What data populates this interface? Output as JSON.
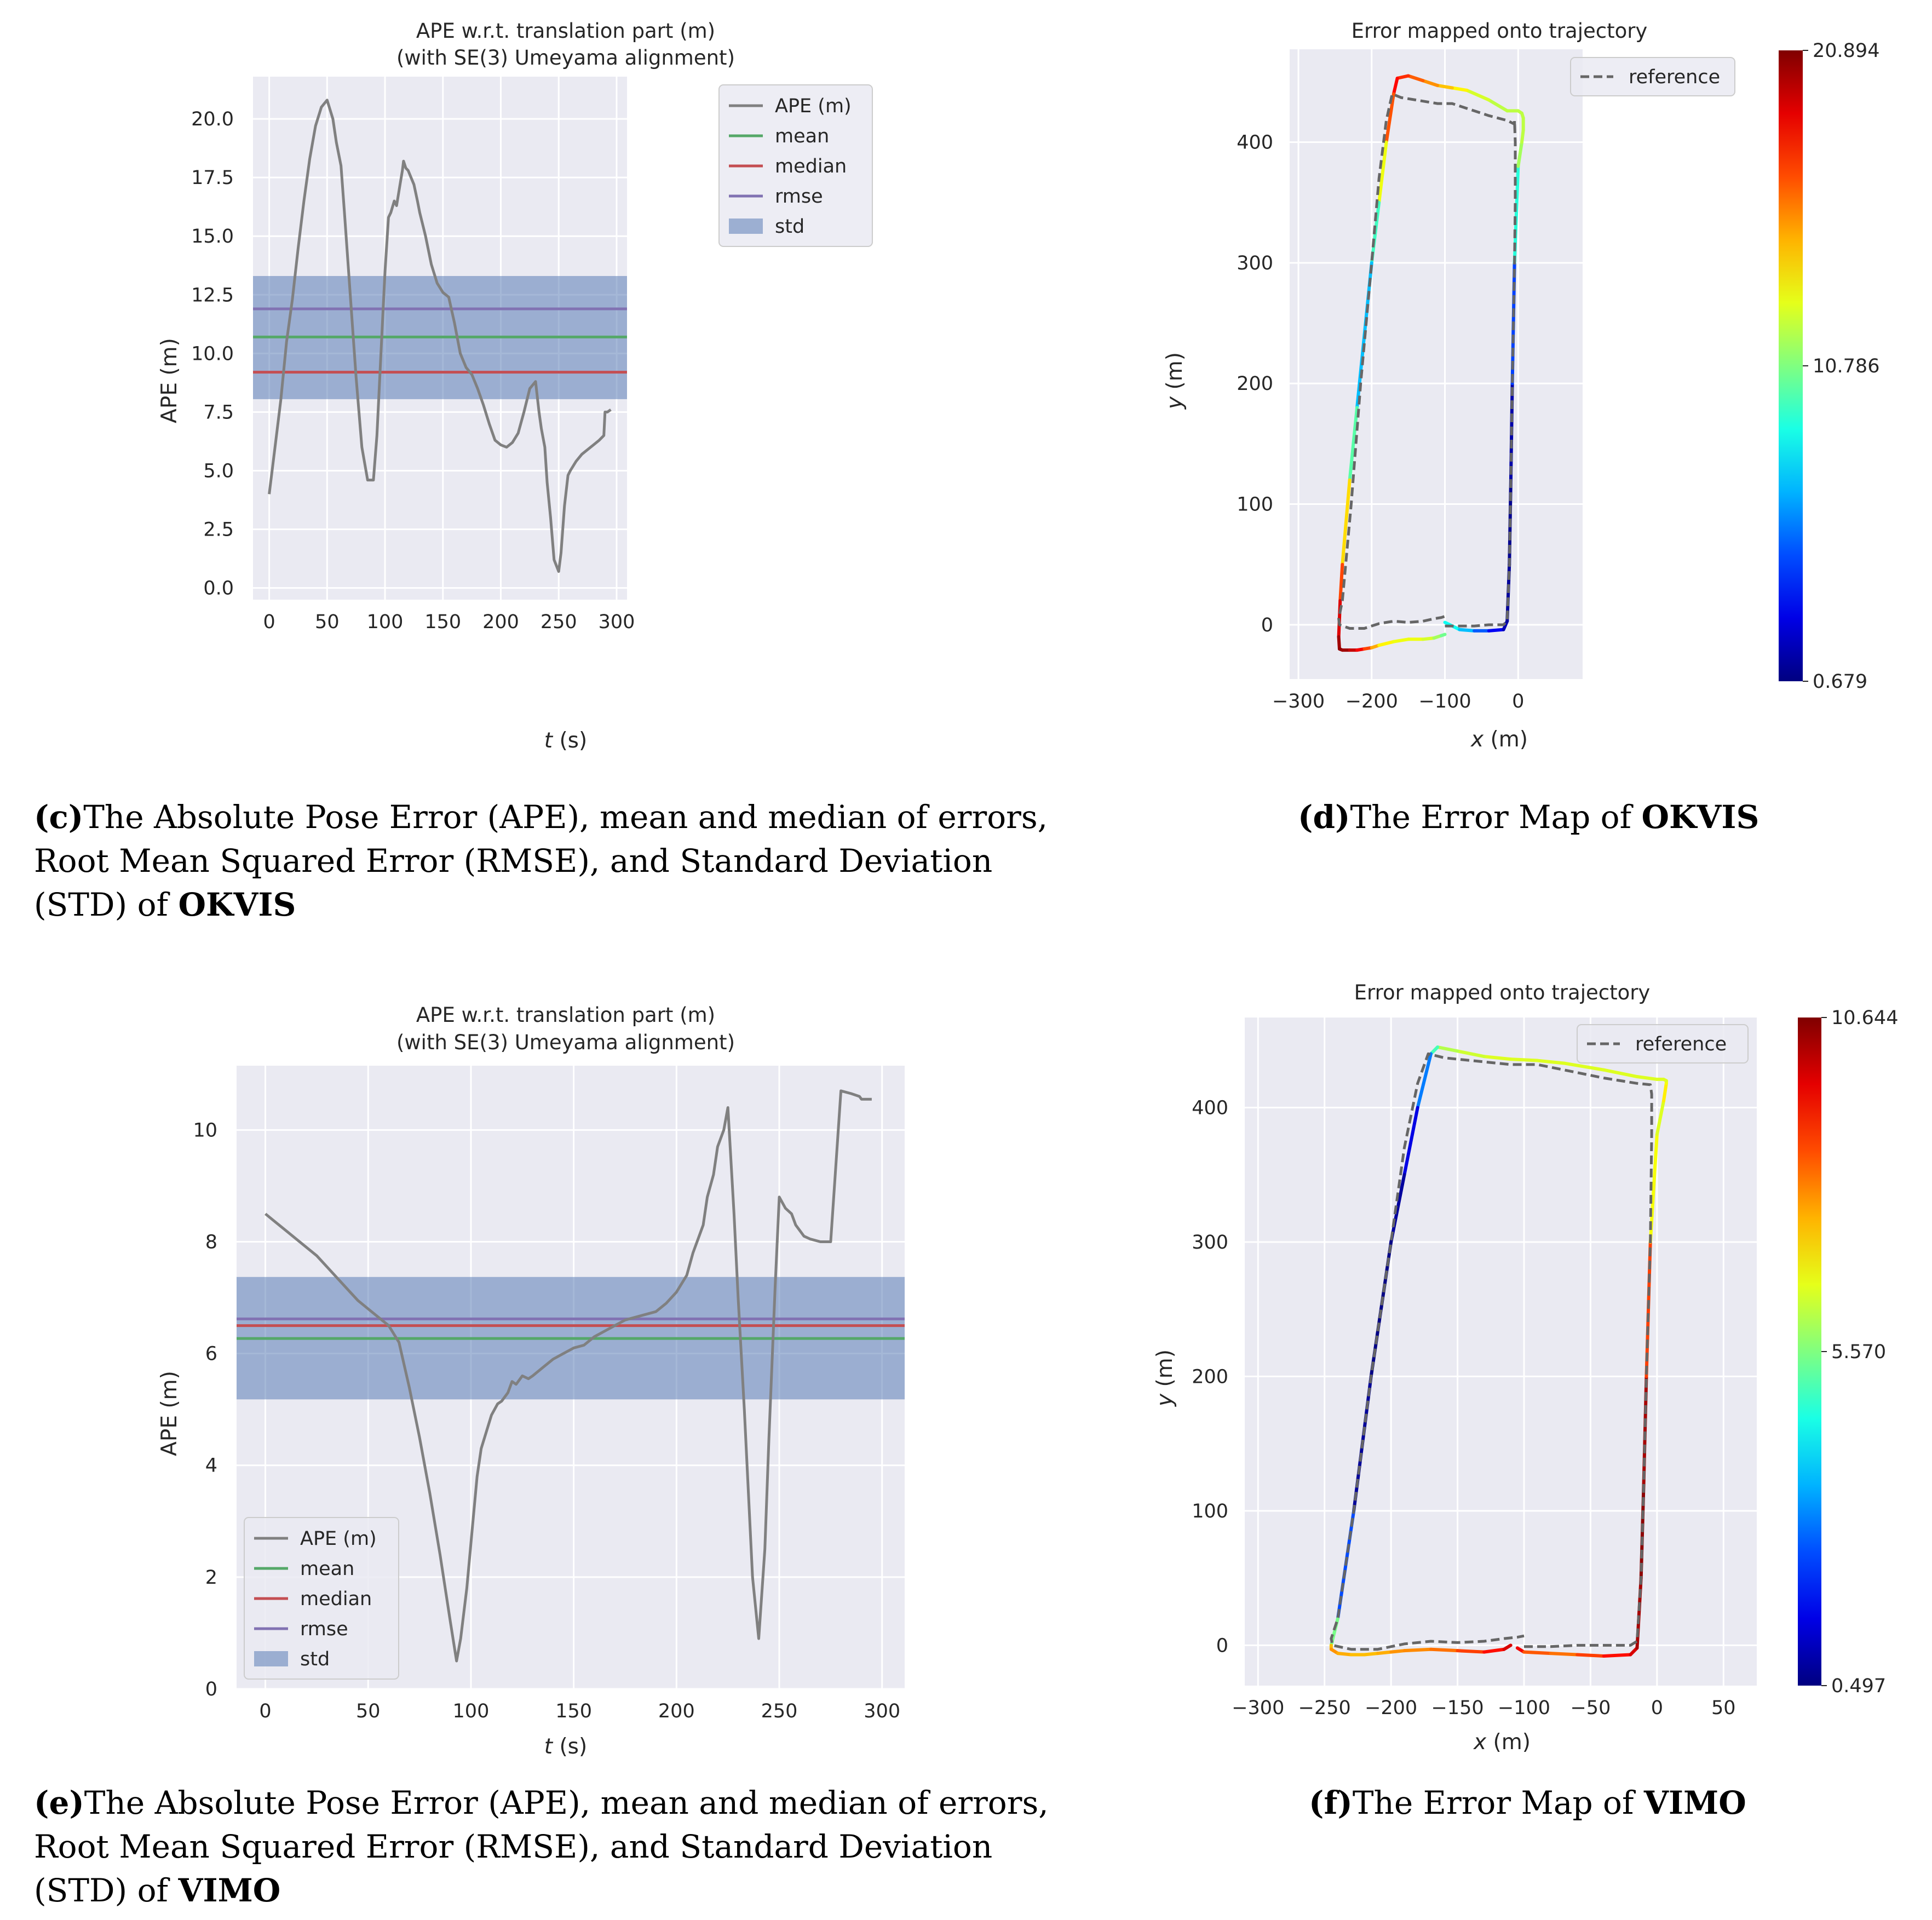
{
  "chart_data": [
    {
      "id": "c",
      "type": "line",
      "title": "APE w.r.t. translation part (m)",
      "subtitle": "(with SE(3) Umeyama alignment)",
      "xlabel_var": "t",
      "xlabel_unit": " (s)",
      "ylabel": "APE (m)",
      "xlim": [
        -14,
        309
      ],
      "ylim": [
        -0.5,
        21.8
      ],
      "xticks": [
        0,
        50,
        100,
        150,
        200,
        250,
        300
      ],
      "yticks": [
        0.0,
        2.5,
        5.0,
        7.5,
        10.0,
        12.5,
        15.0,
        17.5,
        20.0
      ],
      "ytick_labels": [
        "0.0",
        "2.5",
        "5.0",
        "7.5",
        "10.0",
        "12.5",
        "15.0",
        "17.5",
        "20.0"
      ],
      "legend_position": "top-right",
      "legend": [
        "APE (m)",
        "mean",
        "median",
        "rmse",
        "std"
      ],
      "stats": {
        "mean": 10.7,
        "median": 9.2,
        "rmse": 11.9,
        "std_low": 8.05,
        "std_high": 13.3
      },
      "series": [
        {
          "name": "APE (m)",
          "x": [
            0,
            5,
            10,
            15,
            20,
            25,
            30,
            35,
            40,
            45,
            50,
            55,
            58,
            62,
            65,
            70,
            75,
            80,
            85,
            90,
            93,
            95,
            98,
            100,
            103,
            105,
            108,
            110,
            113,
            115,
            116,
            118,
            120,
            125,
            128,
            130,
            135,
            140,
            145,
            150,
            155,
            160,
            165,
            170,
            175,
            180,
            185,
            190,
            195,
            200,
            205,
            210,
            215,
            220,
            225,
            230,
            233,
            235,
            238,
            240,
            243,
            246,
            250,
            252,
            255,
            258,
            260,
            265,
            270,
            275,
            280,
            285,
            289,
            290,
            292,
            295
          ],
          "y": [
            4.0,
            6.0,
            8.0,
            10.5,
            12.3,
            14.5,
            16.5,
            18.3,
            19.7,
            20.5,
            20.8,
            20.0,
            19.0,
            18.0,
            16.0,
            12.5,
            9.0,
            6.0,
            4.6,
            4.6,
            6.5,
            8.5,
            11.5,
            13.5,
            15.8,
            16.0,
            16.5,
            16.3,
            17.2,
            17.8,
            18.2,
            17.9,
            17.8,
            17.2,
            16.5,
            16.0,
            15.0,
            13.8,
            13.0,
            12.6,
            12.4,
            11.3,
            10.0,
            9.4,
            9.1,
            8.5,
            7.8,
            7.0,
            6.3,
            6.1,
            6.0,
            6.2,
            6.6,
            7.5,
            8.5,
            8.8,
            7.5,
            6.8,
            6.0,
            4.5,
            3.0,
            1.2,
            0.7,
            1.5,
            3.5,
            4.8,
            5.0,
            5.4,
            5.7,
            5.9,
            6.1,
            6.3,
            6.5,
            7.5,
            7.5,
            7.6
          ]
        }
      ]
    },
    {
      "id": "d",
      "type": "line",
      "title": "Error mapped onto trajectory",
      "xlabel_var": "x",
      "xlabel_unit": " (m)",
      "ylabel_var": "y",
      "ylabel_unit": " (m)",
      "xlim": [
        -312,
        88
      ],
      "ylim": [
        -45,
        477
      ],
      "xticks": [
        -300,
        -200,
        -100,
        0
      ],
      "xtick_labels": [
        "−300",
        "−200",
        "−100",
        "0"
      ],
      "yticks": [
        0,
        100,
        200,
        300,
        400
      ],
      "legend_position": "top-right",
      "legend": [
        "reference"
      ],
      "colorbar": {
        "min": 0.679,
        "max": 20.894,
        "tick_labels": [
          "20.894",
          "10.786",
          "0.679"
        ]
      },
      "reference": {
        "x": [
          -100,
          -80,
          -60,
          -40,
          -20,
          -15,
          -12,
          -10,
          -8,
          -5,
          -4,
          -4,
          -4,
          -5,
          -5,
          -15,
          -40,
          -70,
          -90,
          -110,
          -130,
          -160,
          -172,
          -180,
          -190,
          -200,
          -215,
          -228,
          -240,
          -245,
          -244,
          -230,
          -210,
          -190,
          -170,
          -150,
          -130,
          -115,
          -105,
          -100
        ],
        "y": [
          -1,
          -1,
          -1,
          0,
          0,
          3,
          50,
          120,
          200,
          300,
          350,
          380,
          400,
          418,
          415,
          418,
          422,
          428,
          432,
          432,
          434,
          437,
          440,
          418,
          370,
          300,
          200,
          100,
          20,
          5,
          0,
          -3,
          -3,
          1,
          3,
          2,
          3,
          5,
          6,
          7
        ]
      },
      "estimate": {
        "x": [
          -100,
          -80,
          -60,
          -40,
          -20,
          -15,
          -12,
          -10,
          -8,
          -5,
          0,
          5,
          7,
          7,
          5,
          0,
          -15,
          -40,
          -70,
          -90,
          -110,
          -130,
          -150,
          -165,
          -170,
          -180,
          -190,
          -200,
          -210,
          -220,
          -230,
          -240,
          -243,
          -245,
          -244,
          -240,
          -230,
          -220,
          -210,
          -200,
          -190,
          -170,
          -150,
          -130,
          -115,
          -105,
          -100
        ],
        "y": [
          2,
          -4,
          -5,
          -5,
          -4,
          3,
          50,
          120,
          200,
          300,
          380,
          400,
          410,
          420,
          424,
          426,
          426,
          435,
          443,
          445,
          447,
          451,
          455,
          453,
          440,
          400,
          350,
          300,
          240,
          180,
          120,
          50,
          20,
          -10,
          -20,
          -21,
          -21,
          -21,
          -20,
          -19,
          -17,
          -14,
          -12,
          -12,
          -11,
          -9,
          -8
        ],
        "error": [
          9,
          8,
          6,
          4,
          2,
          1.5,
          1,
          1,
          2,
          7,
          11,
          12,
          12,
          12,
          12,
          12,
          12,
          12,
          13,
          14,
          15,
          16,
          17,
          18,
          18.5,
          15,
          11,
          8,
          6,
          8,
          12,
          16,
          18,
          20,
          20.5,
          20.5,
          20,
          19,
          18,
          16,
          14,
          13,
          13,
          13,
          12,
          11,
          10
        ]
      }
    },
    {
      "id": "e",
      "type": "line",
      "title": "APE w.r.t. translation part (m)",
      "subtitle": "(with SE(3) Umeyama alignment)",
      "xlabel_var": "t",
      "xlabel_unit": " (s)",
      "ylabel": "APE (m)",
      "xlim": [
        -14,
        311
      ],
      "ylim": [
        0,
        11.15
      ],
      "xticks": [
        0,
        50,
        100,
        150,
        200,
        250,
        300
      ],
      "yticks": [
        0,
        2,
        4,
        6,
        8,
        10
      ],
      "ytick_labels": [
        "0",
        "2",
        "4",
        "6",
        "8",
        "10"
      ],
      "legend_position": "bottom-left",
      "legend": [
        "APE (m)",
        "mean",
        "median",
        "rmse",
        "std"
      ],
      "stats": {
        "mean": 6.27,
        "median": 6.5,
        "rmse": 6.62,
        "std_low": 5.18,
        "std_high": 7.37
      },
      "series": [
        {
          "name": "APE (m)",
          "x": [
            0,
            5,
            10,
            15,
            20,
            25,
            30,
            35,
            40,
            45,
            50,
            55,
            60,
            65,
            70,
            75,
            80,
            85,
            90,
            93,
            95,
            98,
            100,
            103,
            105,
            110,
            113,
            115,
            118,
            120,
            122,
            125,
            128,
            130,
            135,
            140,
            145,
            150,
            155,
            160,
            165,
            170,
            175,
            180,
            185,
            190,
            195,
            200,
            205,
            208,
            210,
            213,
            215,
            218,
            220,
            223,
            225,
            228,
            230,
            233,
            235,
            237,
            240,
            243,
            245,
            248,
            250,
            253,
            256,
            258,
            260,
            262,
            265,
            270,
            275,
            280,
            285,
            289,
            290,
            292,
            295
          ],
          "y": [
            8.5,
            8.35,
            8.2,
            8.05,
            7.9,
            7.75,
            7.55,
            7.35,
            7.15,
            6.95,
            6.8,
            6.65,
            6.5,
            6.2,
            5.4,
            4.5,
            3.5,
            2.4,
            1.2,
            0.5,
            0.9,
            1.8,
            2.6,
            3.8,
            4.3,
            4.9,
            5.1,
            5.15,
            5.3,
            5.5,
            5.45,
            5.6,
            5.55,
            5.6,
            5.75,
            5.9,
            6.0,
            6.1,
            6.15,
            6.3,
            6.4,
            6.5,
            6.6,
            6.65,
            6.7,
            6.75,
            6.9,
            7.1,
            7.4,
            7.8,
            8.0,
            8.3,
            8.8,
            9.2,
            9.7,
            10.0,
            10.4,
            8.5,
            7.0,
            5.0,
            3.5,
            2.0,
            0.9,
            2.5,
            4.5,
            7.2,
            8.8,
            8.6,
            8.5,
            8.3,
            8.2,
            8.1,
            8.05,
            8.0,
            8.0,
            10.7,
            10.65,
            10.6,
            10.55,
            10.55,
            10.55
          ]
        }
      ]
    },
    {
      "id": "f",
      "type": "line",
      "title": "Error mapped onto trajectory",
      "xlabel_var": "x",
      "xlabel_unit": " (m)",
      "ylabel_var": "y",
      "ylabel_unit": " (m)",
      "xlim": [
        -310,
        75
      ],
      "ylim": [
        -30,
        467
      ],
      "xticks": [
        -300,
        -250,
        -200,
        -150,
        -100,
        -50,
        0,
        50
      ],
      "xtick_labels": [
        "−300",
        "−250",
        "−200",
        "−150",
        "−100",
        "−50",
        "0",
        "50"
      ],
      "yticks": [
        0,
        100,
        200,
        300,
        400
      ],
      "legend_position": "top-right",
      "legend": [
        "reference"
      ],
      "colorbar": {
        "min": 0.497,
        "max": 10.644,
        "tick_labels": [
          "10.644",
          "5.570",
          "0.497"
        ]
      },
      "reference": {
        "x": [
          -100,
          -80,
          -60,
          -40,
          -20,
          -15,
          -12,
          -10,
          -8,
          -5,
          -4,
          -4,
          -5,
          -15,
          -40,
          -70,
          -90,
          -110,
          -130,
          -160,
          -172,
          -180,
          -190,
          -200,
          -215,
          -228,
          -240,
          -245,
          -244,
          -230,
          -210,
          -190,
          -170,
          -150,
          -130,
          -115,
          -105,
          -100
        ],
        "y": [
          -1,
          -1,
          0,
          0,
          0,
          3,
          50,
          120,
          200,
          300,
          380,
          410,
          417,
          418,
          422,
          428,
          432,
          432,
          434,
          437,
          440,
          418,
          370,
          300,
          200,
          100,
          20,
          5,
          0,
          -3,
          -3,
          1,
          3,
          2,
          3,
          5,
          6,
          7
        ]
      },
      "estimate": {
        "x": [
          -105,
          -100,
          -80,
          -60,
          -40,
          -20,
          -15,
          -12,
          -10,
          -8,
          -5,
          0,
          5,
          7,
          7,
          5,
          0,
          -15,
          -40,
          -70,
          -90,
          -110,
          -130,
          -150,
          -165,
          -170,
          -180,
          -190,
          -200,
          -215,
          -228,
          -240,
          -245,
          -245,
          -240,
          -230,
          -220,
          -210,
          -200,
          -190,
          -170,
          -150,
          -130,
          -115,
          -110
        ],
        "y": [
          -2,
          -5,
          -6,
          -7,
          -8,
          -7,
          -2,
          50,
          120,
          200,
          300,
          380,
          405,
          418,
          420,
          421,
          421,
          423,
          428,
          433,
          435,
          436,
          438,
          442,
          445,
          440,
          400,
          350,
          300,
          200,
          100,
          20,
          0,
          -3,
          -6,
          -7,
          -7,
          -6,
          -5,
          -4,
          -3,
          -4,
          -5,
          -3,
          0
        ],
        "error": [
          10,
          9,
          8,
          8.5,
          9,
          9.5,
          10,
          10.5,
          10.5,
          10,
          7.5,
          6,
          7,
          7,
          6.5,
          6.5,
          6.5,
          6.5,
          6.5,
          6.5,
          6.5,
          6.5,
          6.5,
          6.2,
          6,
          4,
          2,
          1,
          0.6,
          0.5,
          1,
          4,
          7,
          8,
          7.8,
          7.5,
          7.5,
          7.5,
          7.8,
          8,
          8,
          8.5,
          9,
          9.5,
          10
        ]
      }
    }
  ],
  "captions": {
    "c": {
      "label": "(c)",
      "lines": [
        "The Absolute Pose Error (APE), mean and median of errors,",
        "Root Mean Squared Error (RMSE), and Standard Deviation"
      ],
      "line3_prefix": "(STD) of ",
      "method": "OKVIS"
    },
    "d": {
      "label": "(d)",
      "text": "The Error Map of ",
      "method": "OKVIS"
    },
    "e": {
      "label": "(e)",
      "lines": [
        "The Absolute Pose Error (APE), mean and median of errors,",
        "Root Mean Squared Error (RMSE), and Standard Deviation"
      ],
      "line3_prefix": "(STD) of ",
      "method": "VIMO"
    },
    "f": {
      "label": "(f)",
      "text": "The Error Map of ",
      "method": "VIMO"
    }
  },
  "colors": {
    "background": "#eaeaf2",
    "grid": "#ffffff",
    "ape": "#808080",
    "mean": "#55a868",
    "median": "#c44e52",
    "rmse": "#8172b2",
    "std": "#4c72b0",
    "reference": "#666666",
    "text": "#262626"
  }
}
